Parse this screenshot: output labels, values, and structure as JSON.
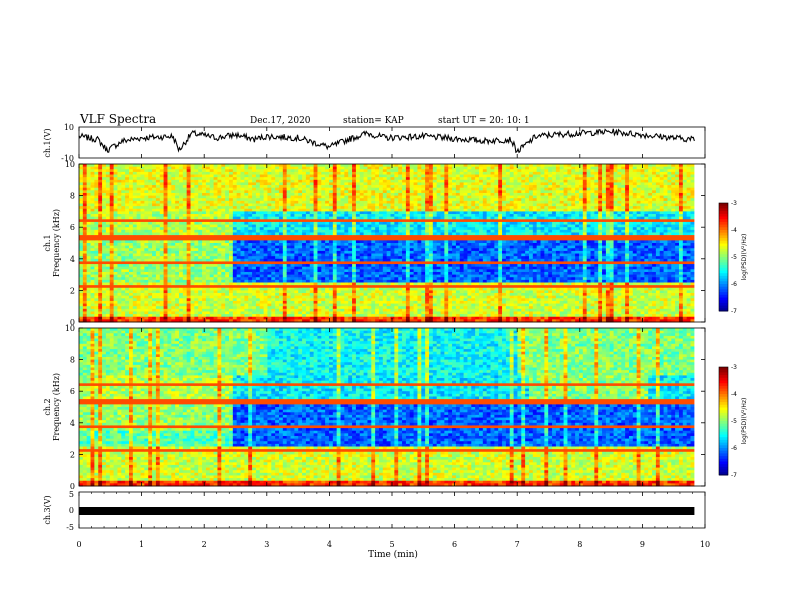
{
  "header": {
    "title": "VLF Spectra",
    "date": "Dec.17, 2020",
    "station": "station= KAP",
    "start": "start  UT =   20: 10: 1"
  },
  "chart_data": [
    {
      "type": "line",
      "panel": "ch1-waveform",
      "ylabel": "ch.1(V)",
      "ylim": [
        -10,
        10
      ],
      "yticks": [
        "10",
        "-10"
      ],
      "x_range_min": [
        0,
        9.83
      ],
      "series": [
        {
          "x": [
            0,
            0.3,
            0.45,
            0.7,
            1.0,
            1.5,
            1.6,
            1.8,
            2.2,
            2.5,
            2.8,
            3.0,
            3.5,
            4.0,
            4.3,
            4.6,
            4.9,
            5.5,
            6.5,
            6.9,
            7.0,
            7.3,
            7.6,
            8.0,
            8.5,
            9.0,
            9.5,
            9.83
          ],
          "y": [
            4,
            2,
            -5,
            1,
            3,
            4,
            -5,
            6,
            3,
            5,
            2,
            4,
            3,
            -3,
            2,
            6,
            3,
            4,
            1,
            2,
            -6,
            4,
            5,
            6,
            7,
            5,
            3,
            2
          ]
        }
      ]
    },
    {
      "type": "heatmap",
      "panel": "ch1-spectrogram",
      "ylabel": "ch.1\nFrequency (kHz)",
      "ylim": [
        0,
        10
      ],
      "yticks": [
        "0",
        "2",
        "4",
        "6",
        "8",
        "10"
      ],
      "colorbar": {
        "label": "log(PSD)(V²/Hz)",
        "range": [
          -7,
          -3
        ],
        "ticks": [
          "-3",
          "-4",
          "-5",
          "-6",
          "-7"
        ]
      },
      "x_range_min": [
        0,
        9.83
      ]
    },
    {
      "type": "heatmap",
      "panel": "ch2-spectrogram",
      "ylabel": "ch.2\nFrequency (kHz)",
      "ylim": [
        0,
        10
      ],
      "yticks": [
        "0",
        "2",
        "4",
        "6",
        "8",
        "10"
      ],
      "colorbar": {
        "label": "log(PSD)(V²/Hz)",
        "range": [
          -7,
          -3
        ],
        "ticks": [
          "-3",
          "-4",
          "-5",
          "-6",
          "-7"
        ]
      },
      "x_range_min": [
        0,
        9.83
      ]
    },
    {
      "type": "line",
      "panel": "ch3-signal",
      "ylabel": "ch.3(V)",
      "ylim": [
        -5,
        5
      ],
      "yticks": [
        "5",
        "0",
        "-5"
      ],
      "x_range_min": [
        0,
        9.83
      ],
      "series": [
        {
          "x": [
            0,
            9.83
          ],
          "y": [
            0,
            0
          ]
        }
      ]
    }
  ],
  "xaxis": {
    "label": "Time (min)",
    "range": [
      0,
      10
    ],
    "ticks": [
      "0",
      "1",
      "2",
      "3",
      "4",
      "5",
      "6",
      "7",
      "8",
      "9",
      "10"
    ]
  }
}
